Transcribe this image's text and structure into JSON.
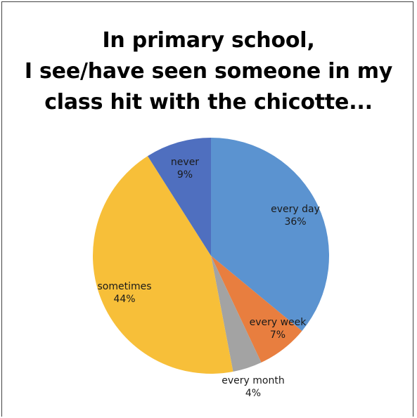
{
  "chart_data": {
    "type": "pie",
    "title_lines": [
      "In primary school,",
      "I see/have seen someone in my",
      "class hit with the chicotte..."
    ],
    "slices": [
      {
        "label": "every day",
        "value": 36,
        "value_label": "36%",
        "color": "#5b93d0"
      },
      {
        "label": "every week",
        "value": 7,
        "value_label": "7%",
        "color": "#e87e3f"
      },
      {
        "label": "every month",
        "value": 4,
        "value_label": "4%",
        "color": "#a3a3a3"
      },
      {
        "label": "sometimes",
        "value": 44,
        "value_label": "44%",
        "color": "#f7bf39"
      },
      {
        "label": "never",
        "value": 9,
        "value_label": "9%",
        "color": "#4f6fbf"
      }
    ]
  }
}
